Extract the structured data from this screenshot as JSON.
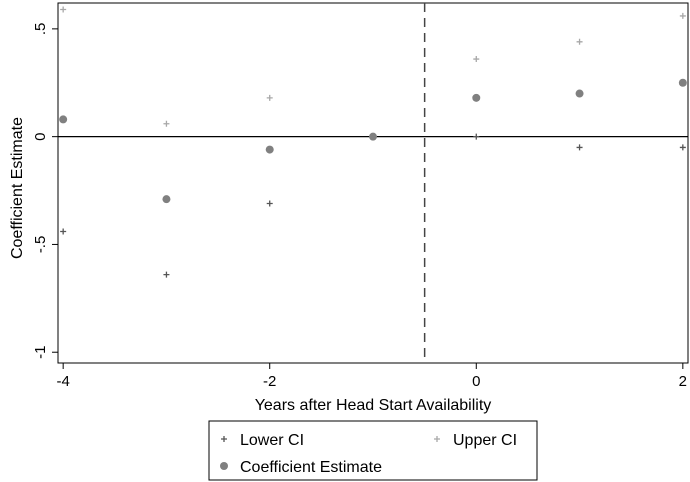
{
  "chart_data": {
    "type": "scatter",
    "title": "",
    "xlabel": "Years after Head Start Availability",
    "ylabel": "Coefficient Estimate",
    "xlim": [
      -4.05,
      2.05
    ],
    "ylim": [
      -1.05,
      0.62
    ],
    "x_ticks": [
      {
        "value": -4,
        "label": "-4"
      },
      {
        "value": -2,
        "label": "-2"
      },
      {
        "value": 0,
        "label": "0"
      },
      {
        "value": 2,
        "label": "2"
      }
    ],
    "y_ticks": [
      {
        "value": -1,
        "label": "-1"
      },
      {
        "value": -0.5,
        "label": "-.5"
      },
      {
        "value": 0,
        "label": "0"
      },
      {
        "value": 0.5,
        "label": ".5"
      }
    ],
    "reference_lines": {
      "horizontal_y": 0,
      "vertical_x": -0.5
    },
    "grid": false,
    "legend_position": "bottom",
    "series": [
      {
        "name": "Lower CI",
        "marker": "plus",
        "color": "#555555",
        "points": [
          {
            "x": -4,
            "y": -0.44
          },
          {
            "x": -3,
            "y": -0.64
          },
          {
            "x": -2,
            "y": -0.31
          },
          {
            "x": 0,
            "y": 0.0
          },
          {
            "x": 1,
            "y": -0.05
          },
          {
            "x": 2,
            "y": -0.05
          }
        ]
      },
      {
        "name": "Upper CI",
        "marker": "plus",
        "color": "#a8a8a8",
        "points": [
          {
            "x": -4,
            "y": 0.59
          },
          {
            "x": -3,
            "y": 0.06
          },
          {
            "x": -2,
            "y": 0.18
          },
          {
            "x": 0,
            "y": 0.36
          },
          {
            "x": 1,
            "y": 0.44
          },
          {
            "x": 2,
            "y": 0.56
          }
        ]
      },
      {
        "name": "Coefficient Estimate",
        "marker": "circle",
        "color": "#808080",
        "points": [
          {
            "x": -4,
            "y": 0.08
          },
          {
            "x": -3,
            "y": -0.29
          },
          {
            "x": -2,
            "y": -0.06
          },
          {
            "x": -1,
            "y": 0.0
          },
          {
            "x": 0,
            "y": 0.18
          },
          {
            "x": 1,
            "y": 0.2
          },
          {
            "x": 2,
            "y": 0.25
          }
        ]
      }
    ]
  }
}
